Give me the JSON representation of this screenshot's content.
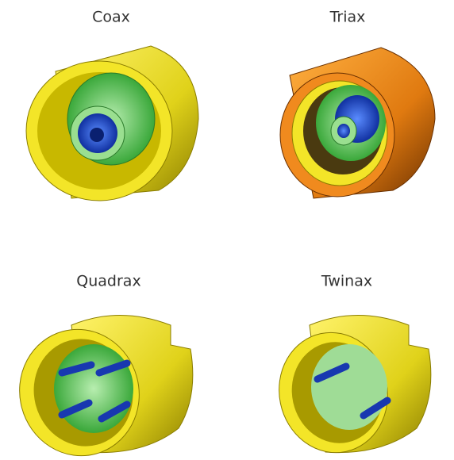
{
  "items": [
    {
      "label": "Coax"
    },
    {
      "label": "Triax"
    },
    {
      "label": "Quadrax"
    },
    {
      "label": "Twinax"
    }
  ]
}
